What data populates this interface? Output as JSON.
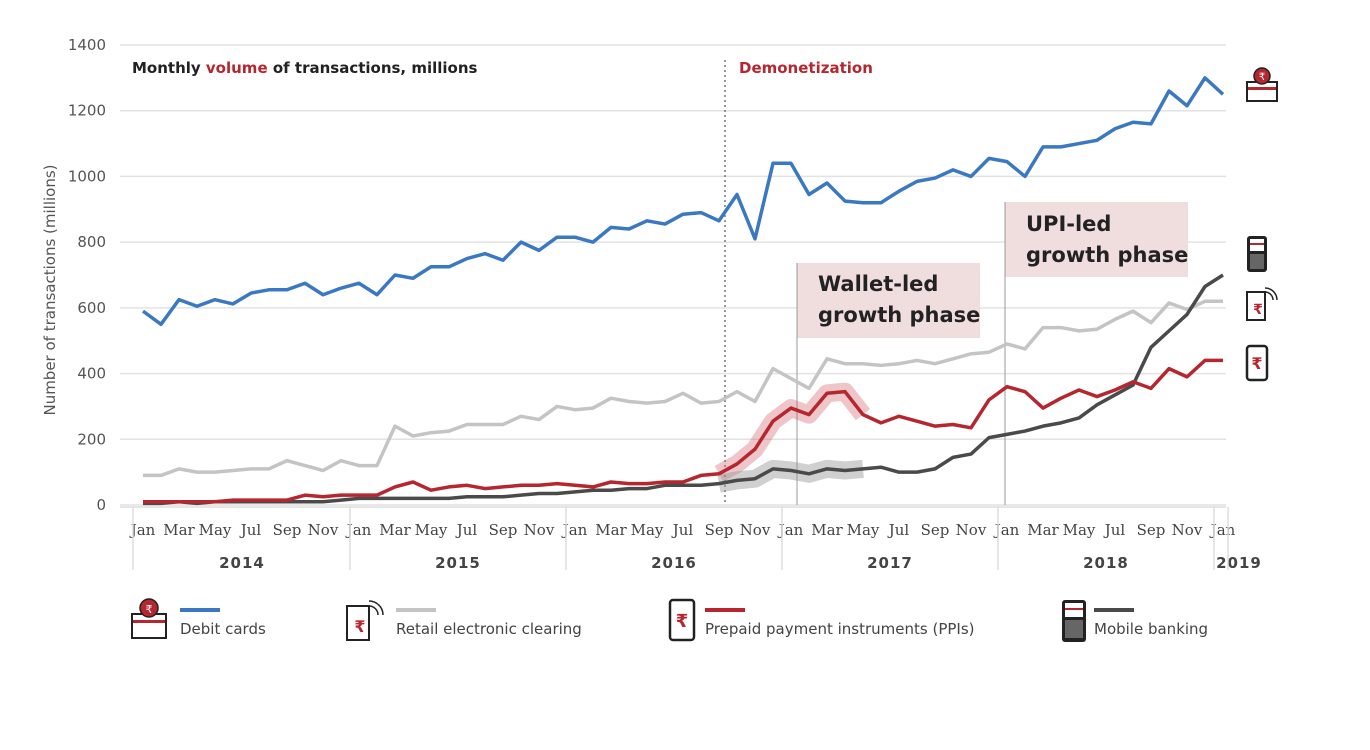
{
  "chart_data": {
    "type": "line",
    "title_parts": [
      "Monthly ",
      "volume",
      " of transactions, millions"
    ],
    "ylabel": "Number of transactions (millions)",
    "xlabel": "",
    "ylim": [
      0,
      1400
    ],
    "yticks": [
      0,
      200,
      400,
      600,
      800,
      1000,
      1200,
      1400
    ],
    "grid": true,
    "legend_position": "bottom",
    "x_start": "2014-01",
    "x_end": "2019-01",
    "month_tick_labels": [
      "Jan",
      "Mar",
      "May",
      "Jul",
      "Sep",
      "Nov"
    ],
    "final_month_label": "Jan",
    "years": [
      "2014",
      "2015",
      "2016",
      "2017",
      "2018",
      "2019"
    ],
    "series": [
      {
        "name": "Debit cards",
        "color": "#3a78c2",
        "icon": "debit-card-icon",
        "values": [
          590,
          550,
          625,
          605,
          625,
          612,
          645,
          655,
          655,
          675,
          640,
          660,
          675,
          640,
          700,
          690,
          725,
          725,
          750,
          765,
          745,
          800,
          775,
          815,
          815,
          800,
          845,
          840,
          865,
          855,
          885,
          890,
          865,
          945,
          810,
          1040,
          1040,
          945,
          980,
          925,
          920,
          920,
          955,
          985,
          995,
          1020,
          1000,
          1055,
          1045,
          1000,
          1090,
          1090,
          1100,
          1110,
          1145,
          1165,
          1160,
          1260,
          1215,
          1300,
          1250
        ]
      },
      {
        "name": "Retail electronic clearing",
        "color": "#c4c4c4",
        "icon": "receipt-icon",
        "values": [
          90,
          90,
          110,
          100,
          100,
          105,
          110,
          110,
          135,
          120,
          105,
          135,
          120,
          120,
          240,
          210,
          220,
          225,
          245,
          245,
          245,
          270,
          260,
          300,
          290,
          295,
          325,
          315,
          310,
          315,
          340,
          310,
          315,
          345,
          315,
          415,
          385,
          355,
          445,
          430,
          430,
          425,
          430,
          440,
          430,
          445,
          460,
          465,
          490,
          475,
          540,
          540,
          530,
          535,
          565,
          590,
          555,
          615,
          595,
          620,
          620
        ]
      },
      {
        "name": "Prepaid payment instruments (PPIs)",
        "color": "#b5262f",
        "icon": "mobile-rupee-icon",
        "highlight": [
          "2016-09",
          "2017-05"
        ],
        "values": [
          10,
          10,
          10,
          10,
          10,
          15,
          15,
          15,
          15,
          30,
          25,
          30,
          30,
          30,
          55,
          70,
          45,
          55,
          60,
          50,
          55,
          60,
          60,
          65,
          60,
          55,
          70,
          65,
          65,
          70,
          70,
          90,
          95,
          125,
          170,
          255,
          295,
          275,
          340,
          345,
          275,
          250,
          270,
          255,
          240,
          245,
          235,
          320,
          360,
          345,
          295,
          325,
          350,
          330,
          350,
          375,
          355,
          415,
          390,
          440,
          440
        ]
      },
      {
        "name": "Mobile banking",
        "color": "#4a4a4a",
        "icon": "feature-phone-icon",
        "highlight": [
          "2016-09",
          "2017-05"
        ],
        "values": [
          5,
          5,
          10,
          5,
          10,
          10,
          10,
          10,
          10,
          10,
          10,
          15,
          20,
          20,
          20,
          20,
          20,
          20,
          25,
          25,
          25,
          30,
          35,
          35,
          40,
          45,
          45,
          50,
          50,
          60,
          60,
          60,
          65,
          75,
          80,
          110,
          105,
          95,
          110,
          105,
          110,
          115,
          100,
          100,
          110,
          145,
          155,
          205,
          215,
          225,
          240,
          250,
          265,
          305,
          335,
          365,
          480,
          530,
          580,
          665,
          700
        ]
      }
    ],
    "annotations": [
      {
        "text": "Demonetization",
        "at": "2016-11",
        "style": "dotted-line"
      },
      {
        "text_lines": [
          "Wallet-led",
          "growth phase"
        ],
        "from": "2017-01",
        "to": "2017-10"
      },
      {
        "text_lines": [
          "UPI-led",
          "growth phase"
        ],
        "from": "2018-01",
        "to": "2018-10"
      }
    ],
    "highlight_color": "#f0dede"
  }
}
